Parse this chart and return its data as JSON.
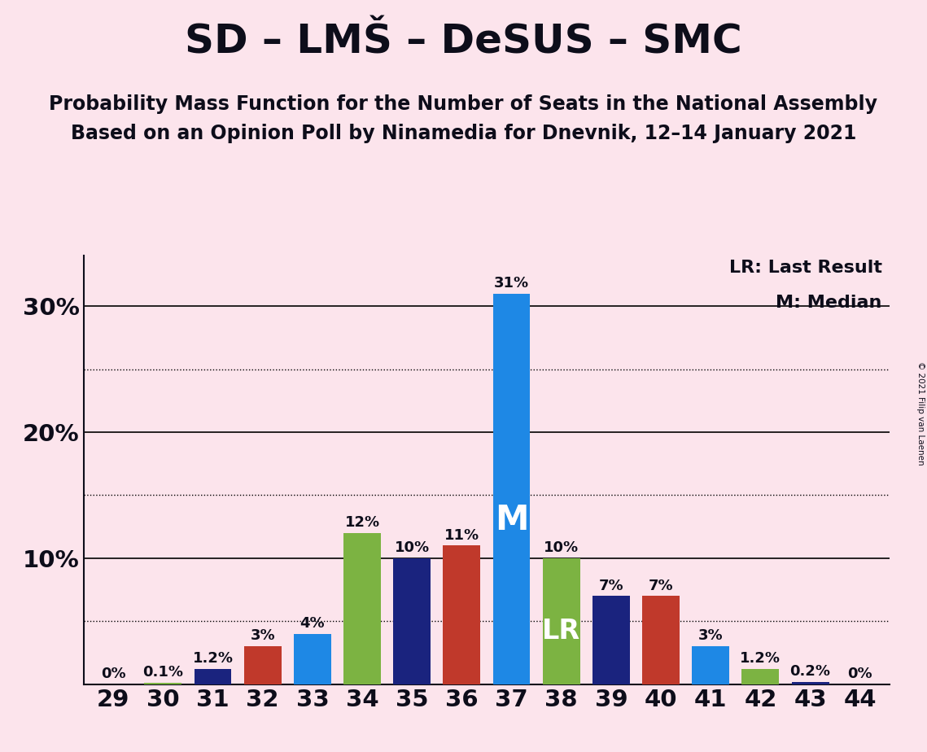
{
  "title": "SD – LMŠ – DeSUS – SMC",
  "subtitle1": "Probability Mass Function for the Number of Seats in the National Assembly",
  "subtitle2": "Based on an Opinion Poll by Ninamedia for Dnevnik, 12–14 January 2021",
  "copyright": "© 2021 Filip van Laenen",
  "legend_lr": "LR: Last Result",
  "legend_m": "M: Median",
  "background_color": "#fce4ec",
  "seats": [
    29,
    30,
    31,
    32,
    33,
    34,
    35,
    36,
    37,
    38,
    39,
    40,
    41,
    42,
    43,
    44
  ],
  "values": [
    0.0,
    0.1,
    1.2,
    3.0,
    4.0,
    12.0,
    10.0,
    11.0,
    31.0,
    10.0,
    7.0,
    7.0,
    3.0,
    1.2,
    0.2,
    0.0
  ],
  "bar_colors": [
    "#7cb342",
    "#7cb342",
    "#1a237e",
    "#c0392b",
    "#1e88e5",
    "#7cb342",
    "#1a237e",
    "#c0392b",
    "#1e88e5",
    "#7cb342",
    "#1a237e",
    "#c0392b",
    "#1e88e5",
    "#7cb342",
    "#1a237e",
    "#c0392b"
  ],
  "median_seat": 37,
  "lr_seat": 38,
  "dotted_lines": [
    5.0,
    15.0,
    25.0
  ],
  "solid_lines": [
    10.0,
    20.0,
    30.0
  ],
  "axis_color": "#0d0d1a",
  "bar_label_fontsize": 13,
  "title_fontsize": 36,
  "subtitle_fontsize": 17,
  "legend_fontsize": 16,
  "tick_fontsize": 21
}
